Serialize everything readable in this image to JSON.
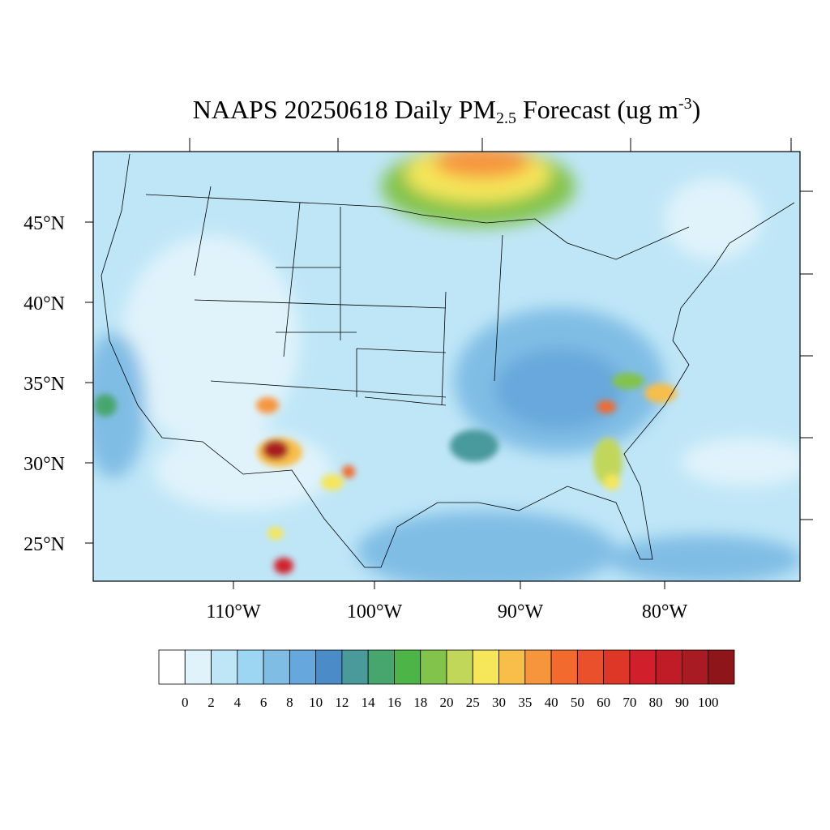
{
  "title": {
    "main": "NAAPS 20250618 Daily PM",
    "subscript": "2.5",
    "after": " Forecast (ug m",
    "superscript": "-3",
    "end": ")"
  },
  "map": {
    "lat_labels": [
      "45°N",
      "40°N",
      "35°N",
      "30°N",
      "25°N"
    ],
    "lon_labels": [
      "110°W",
      "100°W",
      "90°W",
      "80°W"
    ]
  },
  "colorbar": {
    "levels": [
      0,
      2,
      4,
      6,
      8,
      10,
      12,
      14,
      16,
      18,
      20,
      25,
      30,
      35,
      40,
      50,
      60,
      70,
      80,
      90,
      100
    ],
    "colors": [
      "#ffffff",
      "#e0f3fb",
      "#bfe6f7",
      "#9dd6f3",
      "#80bde5",
      "#67a8dc",
      "#4b8bc8",
      "#4a9a9c",
      "#46a66e",
      "#4db548",
      "#82c34c",
      "#c1d75a",
      "#f5e65a",
      "#f7be4a",
      "#f7953c",
      "#f26a2d",
      "#e9502b",
      "#df3727",
      "#d1202c",
      "#bf1c27",
      "#a81b22",
      "#8e161b"
    ]
  }
}
